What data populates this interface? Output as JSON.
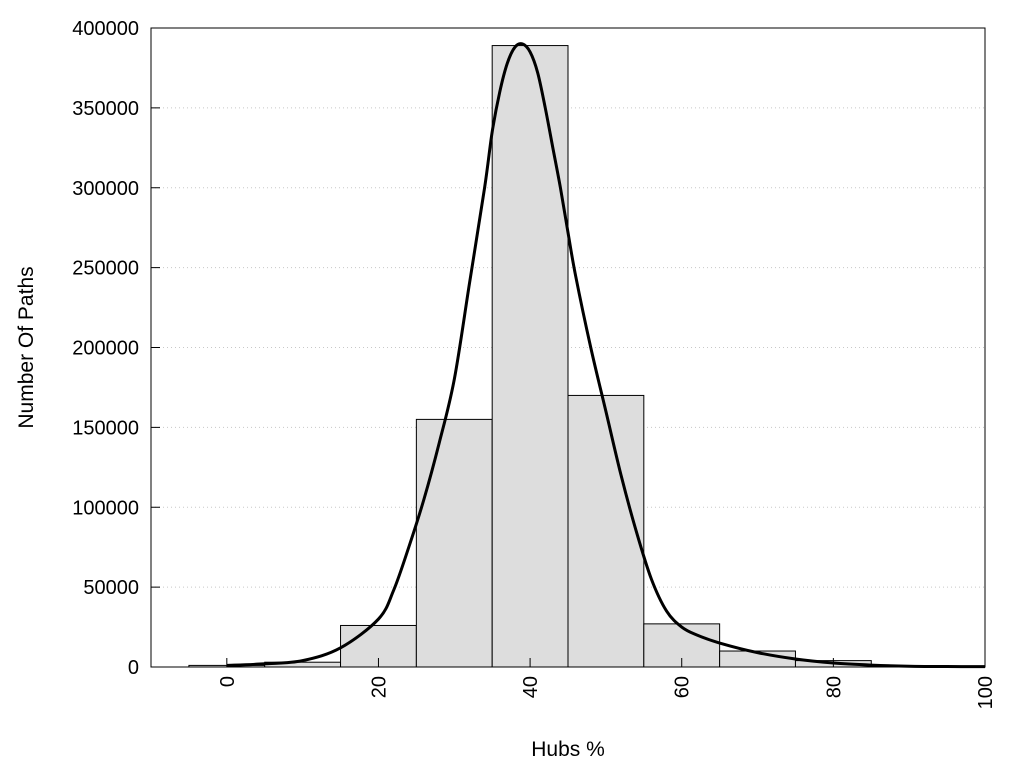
{
  "chart_data": {
    "type": "bar",
    "title": "",
    "xlabel": "Hubs %",
    "ylabel": "Number Of Paths",
    "xlim": [
      -10,
      100
    ],
    "ylim": [
      0,
      400000
    ],
    "x_ticks": [
      "0",
      "20",
      "40",
      "60",
      "80",
      "100"
    ],
    "y_ticks": [
      "0",
      "50000",
      "100000",
      "150000",
      "200000",
      "250000",
      "300000",
      "350000",
      "400000"
    ],
    "grid": "horizontal dotted",
    "legend": "none",
    "bar_color": "#dddddd",
    "curve_color": "#000000",
    "bins": [
      {
        "center": 0,
        "value": 1000
      },
      {
        "center": 10,
        "value": 3000
      },
      {
        "center": 20,
        "value": 26000
      },
      {
        "center": 30,
        "value": 155000
      },
      {
        "center": 40,
        "value": 389000
      },
      {
        "center": 50,
        "value": 170000
      },
      {
        "center": 60,
        "value": 27000
      },
      {
        "center": 70,
        "value": 10000
      },
      {
        "center": 80,
        "value": 4000
      },
      {
        "center": 90,
        "value": 800
      }
    ],
    "fit_curve": {
      "x": [
        0,
        5,
        10,
        15,
        20,
        22,
        24,
        26,
        28,
        30,
        32,
        34,
        35,
        36,
        37,
        38,
        39,
        40,
        41,
        42,
        43,
        44,
        45,
        46,
        48,
        50,
        52,
        54,
        56,
        58,
        60,
        62,
        65,
        70,
        75,
        80,
        85,
        90,
        95,
        100
      ],
      "y": [
        1000,
        2000,
        4000,
        12000,
        30000,
        48000,
        75000,
        105000,
        140000,
        180000,
        240000,
        300000,
        335000,
        360000,
        378000,
        388000,
        390000,
        385000,
        372000,
        350000,
        325000,
        300000,
        272000,
        245000,
        200000,
        160000,
        120000,
        85000,
        55000,
        35000,
        25000,
        20000,
        15000,
        9000,
        5000,
        2500,
        1200,
        500,
        300,
        200
      ]
    }
  }
}
